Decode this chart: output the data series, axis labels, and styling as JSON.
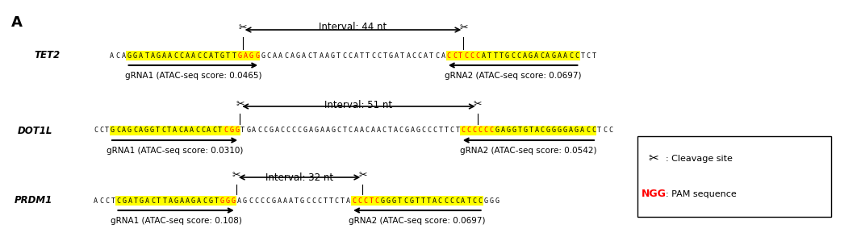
{
  "panel_label": "A",
  "background_color": "#ffffff",
  "rows": [
    {
      "gene": "TET2",
      "interval": "Interval: 44 nt",
      "seq_parts": [
        {
          "text": "ACA",
          "color": "black",
          "bg": "none"
        },
        {
          "text": "GGATAGAACCAACCATGTT",
          "color": "black",
          "bg": "yellow"
        },
        {
          "text": "GAGG",
          "color": "red",
          "bg": "yellow"
        },
        {
          "text": "GCAACAGACTAAGTCCATTCCTGATACCATCA",
          "color": "black",
          "bg": "none"
        },
        {
          "text": "CCTCCC",
          "color": "red",
          "bg": "yellow"
        },
        {
          "text": "ATTTGCCAGACAGAACC",
          "color": "black",
          "bg": "yellow"
        },
        {
          "text": "TCT",
          "color": "black",
          "bg": "none"
        }
      ],
      "grna1_label": "gRNA1 (ATAC-seq score: 0.0465)",
      "grna2_label": "gRNA2 (ATAC-seq score: 0.0697)",
      "cut1_after_char": 23,
      "cut2_after_char": 61
    },
    {
      "gene": "DOT1L",
      "interval": "Interval: 51 nt",
      "seq_parts": [
        {
          "text": "CCT",
          "color": "black",
          "bg": "none"
        },
        {
          "text": "GCAGCAGGTCTACAACCACT",
          "color": "black",
          "bg": "yellow"
        },
        {
          "text": "CGG",
          "color": "red",
          "bg": "yellow"
        },
        {
          "text": "TGACCGACCCCGAGAAGCTCAACAACTACGAGCCCTTCT",
          "color": "black",
          "bg": "none"
        },
        {
          "text": "CCCCCC",
          "color": "red",
          "bg": "yellow"
        },
        {
          "text": "GAGGTGTACGGGGAGACC",
          "color": "black",
          "bg": "yellow"
        },
        {
          "text": "TCC",
          "color": "black",
          "bg": "none"
        }
      ],
      "grna1_label": "gRNA1 (ATAC-seq score: 0.0310)",
      "grna2_label": "gRNA2 (ATAC-seq score: 0.0542)",
      "cut1_after_char": 26,
      "cut2_after_char": 68
    },
    {
      "gene": "PRDM1",
      "interval": "Interval: 32 nt",
      "seq_parts": [
        {
          "text": "ACCT",
          "color": "black",
          "bg": "none"
        },
        {
          "text": "CGATGACTTAGAAGACGT",
          "color": "black",
          "bg": "yellow"
        },
        {
          "text": "GGG",
          "color": "red",
          "bg": "yellow"
        },
        {
          "text": "AGCCCCGAAATGCCCTTCTA",
          "color": "black",
          "bg": "none"
        },
        {
          "text": "CCCTC",
          "color": "red",
          "bg": "yellow"
        },
        {
          "text": "GGGTCGTTTACCCCATCC",
          "color": "black",
          "bg": "yellow"
        },
        {
          "text": "GGG",
          "color": "black",
          "bg": "none"
        }
      ],
      "grna1_label": "gRNA1 (ATAC-seq score: 0.108)",
      "grna2_label": "gRNA2 (ATAC-seq score: 0.0697)",
      "cut1_after_char": 25,
      "cut2_after_char": 47
    }
  ],
  "seq_font_size": 6.0,
  "gene_font_size": 8.5,
  "interval_font_size": 8.5,
  "grna_font_size": 7.5,
  "legend_font_size": 8.0
}
